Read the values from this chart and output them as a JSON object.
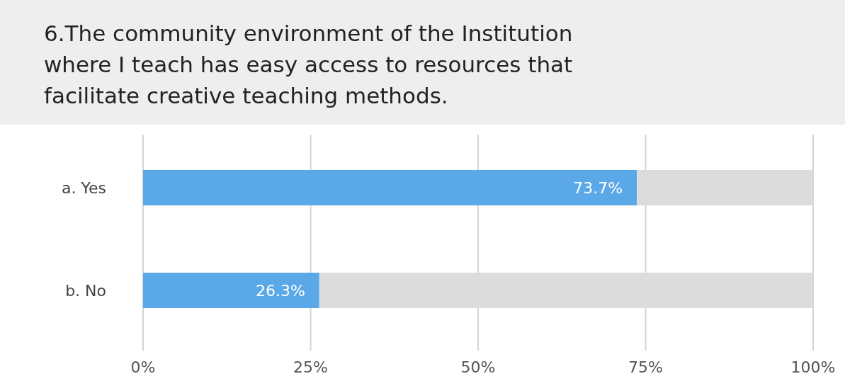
{
  "chart_data": {
    "type": "bar",
    "orientation": "horizontal",
    "stacked": true,
    "title": "6.The community environment of the Institution where I teach has easy access to resources that facilitate creative teaching methods.",
    "categories": [
      "a. Yes",
      "b. No"
    ],
    "series": [
      {
        "color": "#5aa8e8",
        "values": [
          73.7,
          26.3
        ],
        "value_labels": [
          "73.7%",
          "26.3%"
        ]
      },
      {
        "color": "#dcdcdc",
        "values": [
          26.3,
          73.7
        ]
      }
    ],
    "xlim": [
      0,
      100
    ],
    "xticks": [
      {
        "value": 0,
        "label": "0%"
      },
      {
        "value": 25,
        "label": "25%"
      },
      {
        "value": 50,
        "label": "50%"
      },
      {
        "value": 75,
        "label": "75%"
      },
      {
        "value": 100,
        "label": "100%"
      }
    ],
    "grid": "x"
  }
}
